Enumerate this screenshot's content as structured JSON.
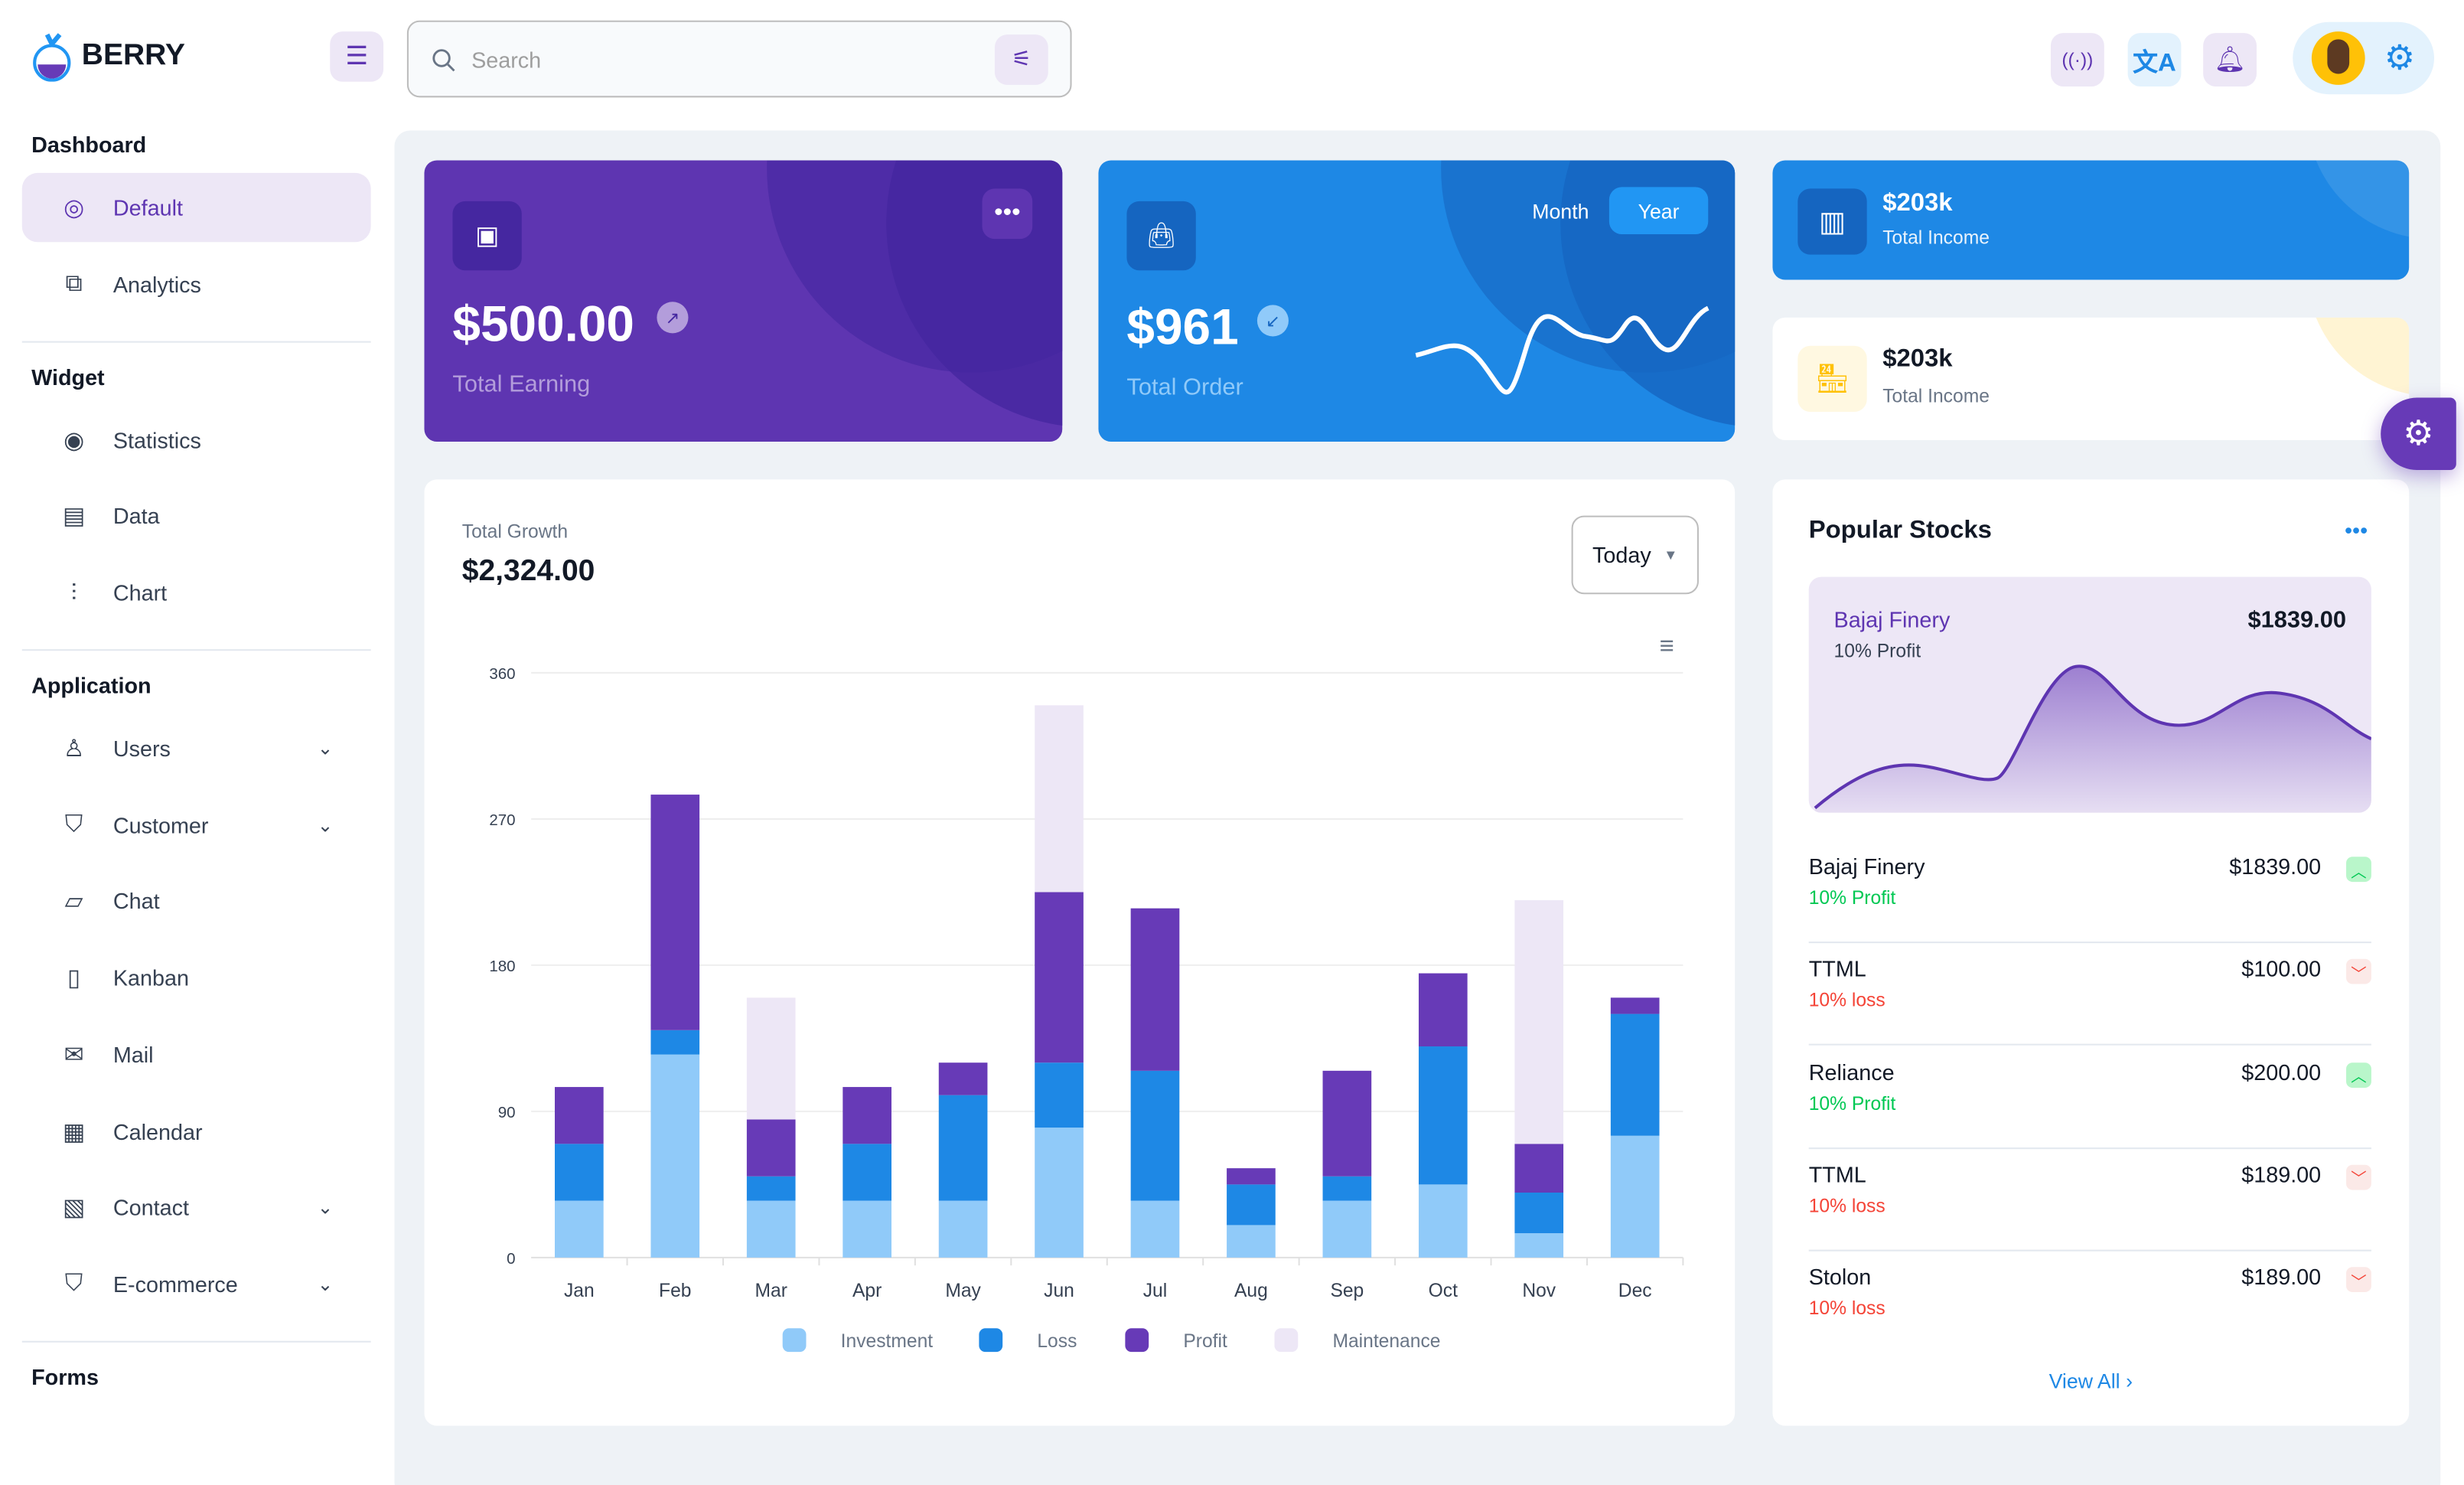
{
  "brand": "BERRY",
  "search": {
    "placeholder": "Search"
  },
  "sidebar": {
    "sections": [
      {
        "title": "Dashboard",
        "items": [
          {
            "label": "Default",
            "icon": "dashboard-icon",
            "active": true
          },
          {
            "label": "Analytics",
            "icon": "analytics-icon"
          }
        ]
      },
      {
        "title": "Widget",
        "items": [
          {
            "label": "Statistics",
            "icon": "statistics-icon"
          },
          {
            "label": "Data",
            "icon": "clipboard-icon"
          },
          {
            "label": "Chart",
            "icon": "chart-icon"
          }
        ]
      },
      {
        "title": "Application",
        "items": [
          {
            "label": "Users",
            "icon": "user-icon",
            "expand": true
          },
          {
            "label": "Customer",
            "icon": "basket-icon",
            "expand": true
          },
          {
            "label": "Chat",
            "icon": "chat-icon"
          },
          {
            "label": "Kanban",
            "icon": "kanban-icon"
          },
          {
            "label": "Mail",
            "icon": "mail-icon"
          },
          {
            "label": "Calendar",
            "icon": "calendar-icon"
          },
          {
            "label": "Contact",
            "icon": "contact-icon",
            "expand": true
          },
          {
            "label": "E-commerce",
            "icon": "basket-icon",
            "expand": true
          }
        ]
      },
      {
        "title": "Forms",
        "items": []
      }
    ]
  },
  "cards": {
    "earning": {
      "value": "$500.00",
      "label": "Total Earning"
    },
    "order": {
      "value": "$961",
      "label": "Total Order",
      "tabs": [
        "Month",
        "Year"
      ],
      "active_tab": "Year"
    },
    "income1": {
      "value": "$203k",
      "label": "Total Income"
    },
    "income2": {
      "value": "$203k",
      "label": "Total Income"
    }
  },
  "growth": {
    "label": "Total Growth",
    "value": "$2,324.00",
    "period": "Today"
  },
  "colors": {
    "investment": "#90caf9",
    "loss": "#1e88e5",
    "profit": "#673ab7",
    "maintenance": "#ede7f6"
  },
  "chart_data": {
    "type": "bar",
    "stacked": true,
    "categories": [
      "Jan",
      "Feb",
      "Mar",
      "Apr",
      "May",
      "Jun",
      "Jul",
      "Aug",
      "Sep",
      "Oct",
      "Nov",
      "Dec"
    ],
    "series": [
      {
        "name": "Investment",
        "values": [
          35,
          125,
          35,
          35,
          35,
          80,
          35,
          20,
          35,
          45,
          15,
          75
        ]
      },
      {
        "name": "Loss",
        "values": [
          35,
          15,
          15,
          35,
          65,
          40,
          80,
          25,
          15,
          85,
          25,
          75
        ]
      },
      {
        "name": "Profit",
        "values": [
          35,
          145,
          35,
          35,
          20,
          105,
          100,
          10,
          65,
          45,
          30,
          10
        ]
      },
      {
        "name": "Maintenance",
        "values": [
          0,
          0,
          75,
          0,
          0,
          115,
          0,
          0,
          0,
          0,
          150,
          0
        ]
      }
    ],
    "yticks": [
      0,
      90,
      180,
      270,
      360
    ],
    "ylim": [
      0,
      360
    ],
    "grid": true,
    "legend": "bottom"
  },
  "stocks": {
    "title": "Popular Stocks",
    "featured": {
      "name": "Bajaj Finery",
      "price": "$1839.00",
      "sub": "10% Profit"
    },
    "rows": [
      {
        "name": "Bajaj Finery",
        "price": "$1839.00",
        "sub": "10% Profit",
        "up": true
      },
      {
        "name": "TTML",
        "price": "$100.00",
        "sub": "10% loss",
        "up": false
      },
      {
        "name": "Reliance",
        "price": "$200.00",
        "sub": "10% Profit",
        "up": true
      },
      {
        "name": "TTML",
        "price": "$189.00",
        "sub": "10% loss",
        "up": false
      },
      {
        "name": "Stolon",
        "price": "$189.00",
        "sub": "10% loss",
        "up": false
      }
    ],
    "view_all": "View All"
  }
}
